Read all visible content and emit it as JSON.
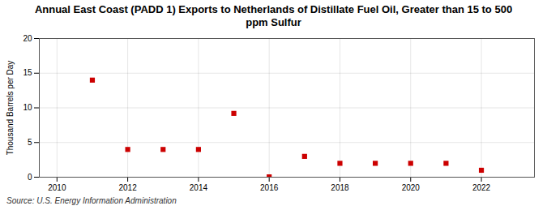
{
  "chart_data": {
    "type": "scatter",
    "title": "Annual East Coast (PADD 1) Exports to Netherlands of Distillate Fuel Oil, Greater than 15 to 500\nppm Sulfur",
    "ylabel": "Thousand Barrels per Day",
    "source": "Source: U.S. Energy Information Administration",
    "x": [
      2011,
      2012,
      2013,
      2014,
      2015,
      2016,
      2017,
      2018,
      2019,
      2020,
      2021,
      2022
    ],
    "values": [
      14.0,
      4.0,
      4.0,
      4.0,
      9.2,
      0.05,
      3.0,
      2.0,
      2.0,
      2.0,
      2.0,
      1.0
    ],
    "xlim": [
      2009.5,
      2023.5
    ],
    "xticks": [
      2010,
      2012,
      2014,
      2016,
      2018,
      2020,
      2022
    ],
    "ylim": [
      0,
      20
    ],
    "yticks": [
      0,
      5,
      10,
      15,
      20
    ],
    "color": "#cc0000",
    "marker": "square",
    "grid": true
  }
}
